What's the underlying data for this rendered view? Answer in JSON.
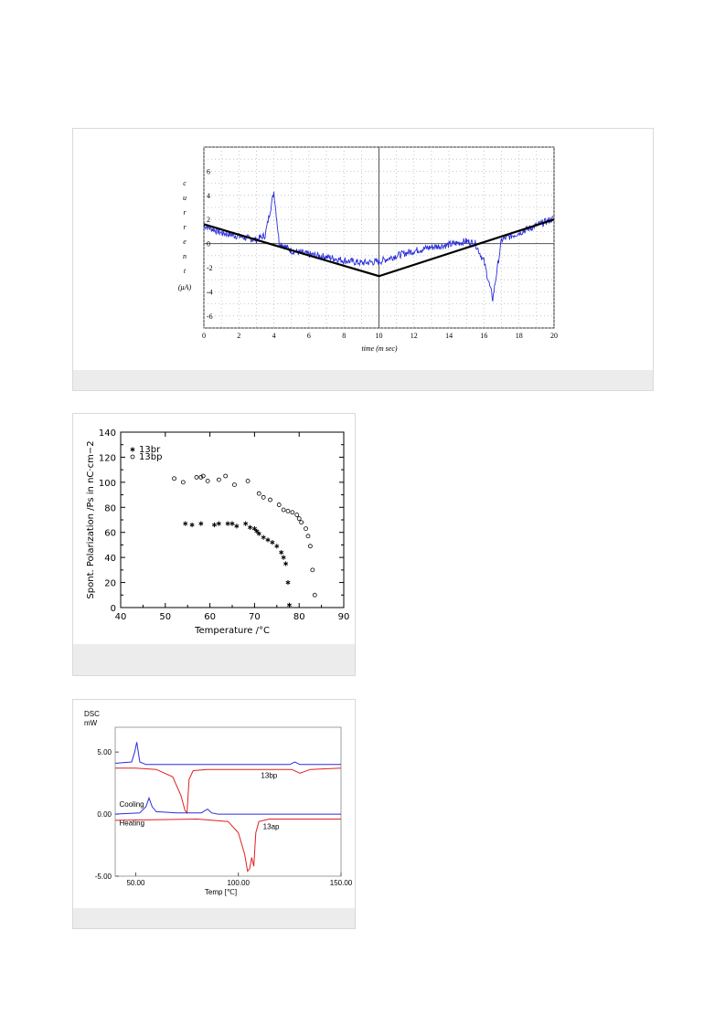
{
  "chart_data": [
    {
      "type": "line",
      "xlabel": "time (m sec)",
      "ylabel": "current (μA)",
      "ylabel_letters": [
        "c",
        "u",
        "r",
        "r",
        "e",
        "n",
        "t",
        "(μA)"
      ],
      "xlim": [
        0,
        20
      ],
      "ylim": [
        -7,
        8
      ],
      "xticks": [
        "0",
        "2",
        "4",
        "6",
        "8",
        "10",
        "12",
        "14",
        "16",
        "18",
        "20"
      ],
      "yticks": [
        {
          "v": 6,
          "label": "6"
        },
        {
          "v": 4,
          "label": "4"
        },
        {
          "v": 2,
          "label": "2"
        },
        {
          "v": 0,
          "label": "0"
        },
        {
          "v": -2,
          "label": "-2"
        },
        {
          "v": -4,
          "label": "-4"
        },
        {
          "v": -6,
          "label": "-6"
        }
      ],
      "grid": true,
      "series": [
        {
          "name": "",
          "style": "triangle",
          "color": "#000000",
          "x": [
            0,
            10,
            20
          ],
          "y": [
            1.6,
            -2.7,
            2.0
          ]
        },
        {
          "name": "",
          "style": "noisy",
          "color": "#2b2fd9",
          "x": [
            0,
            1,
            2,
            3,
            3.5,
            4.0,
            4.3,
            5,
            6,
            7,
            8,
            9,
            10,
            11,
            12,
            13,
            14,
            15,
            15.5,
            16.0,
            16.5,
            17,
            18,
            19,
            20
          ],
          "y": [
            1.5,
            0.9,
            0.6,
            0.3,
            0.7,
            4.3,
            0.1,
            -0.6,
            -0.9,
            -1.1,
            -1.4,
            -1.6,
            -1.5,
            -1.0,
            -0.6,
            -0.3,
            -0.1,
            0.2,
            0.0,
            -1.5,
            -4.6,
            0.3,
            0.9,
            1.5,
            2.1
          ]
        }
      ]
    },
    {
      "type": "scatter",
      "xlabel": "Temperature /°C",
      "ylabel": "Spont. Polarization /Ps in nC·cm−2",
      "xlim": [
        40,
        90
      ],
      "ylim": [
        0,
        140
      ],
      "xticks": [
        "40",
        "50",
        "60",
        "70",
        "80",
        "90"
      ],
      "yticks": [
        "0",
        "20",
        "40",
        "60",
        "80",
        "100",
        "120",
        "140"
      ],
      "legend_position": "top-left",
      "series": [
        {
          "name": "13br",
          "marker": "star",
          "x": [
            54.5,
            56,
            58,
            61,
            62,
            64,
            65,
            66,
            68,
            69,
            70,
            70.5,
            71,
            72,
            73,
            74,
            75,
            76,
            76.5,
            77,
            77.5
          ],
          "y": [
            67,
            66,
            67,
            66,
            67,
            67,
            67,
            65,
            67,
            64,
            63,
            61,
            59,
            56,
            54,
            52,
            49,
            44,
            40,
            35,
            20
          ]
        },
        {
          "name": "13bp",
          "marker": "circle",
          "x": [
            52,
            54,
            57,
            58,
            58.5,
            59.5,
            62,
            63.5,
            65.5,
            68.5,
            71,
            72,
            73.5,
            75.5,
            76.5,
            77.5,
            78.5,
            79.5,
            80,
            80.5,
            81.5,
            82,
            82.5,
            83
          ],
          "y": [
            103,
            100,
            104,
            104,
            105,
            101,
            102,
            105,
            98,
            101,
            91,
            88,
            86,
            82,
            78,
            77,
            76,
            74,
            71,
            68,
            63,
            57,
            49,
            30
          ]
        }
      ],
      "extra_points": {
        "x": [
          77.8,
          83.5
        ],
        "y": [
          2,
          10
        ]
      }
    },
    {
      "type": "line",
      "ylabel_top": "DSC",
      "ylabel_unit": "mW",
      "xlabel": "Temp [℃]",
      "xlim": [
        40,
        150
      ],
      "ylim": [
        -5,
        7
      ],
      "xticks": [
        {
          "v": 50,
          "label": "50.00"
        },
        {
          "v": 100,
          "label": "100.00"
        },
        {
          "v": 150,
          "label": "150.00"
        }
      ],
      "yticks": [
        {
          "v": 5,
          "label": "5.00"
        },
        {
          "v": 0,
          "label": "0.00"
        },
        {
          "v": -5,
          "label": "-5.00"
        }
      ],
      "annotations": [
        {
          "text": "13bp",
          "x": 111,
          "y": 2.9,
          "color": "#000000"
        },
        {
          "text": "Cooling",
          "x": 42,
          "y": 0.6,
          "color": "#2b2fd9"
        },
        {
          "text": "Heating",
          "x": 42,
          "y": -0.9,
          "color": "#e02020"
        },
        {
          "text": "13ap",
          "x": 112,
          "y": -1.2,
          "color": "#000000"
        }
      ],
      "series": [
        {
          "name": "13bp cooling",
          "color": "#2b2fd9",
          "x": [
            40,
            48,
            49.5,
            50.5,
            52,
            55,
            70,
            100,
            125,
            127.5,
            130,
            135,
            150
          ],
          "y": [
            4.1,
            4.2,
            5.0,
            5.8,
            4.2,
            4.0,
            4.0,
            4.0,
            4.0,
            4.2,
            4.0,
            4.0,
            4.0
          ]
        },
        {
          "name": "13bp heating",
          "color": "#e02020",
          "x": [
            40,
            50,
            60,
            68,
            72,
            74,
            75,
            76,
            78,
            85,
            100,
            126,
            130,
            135,
            150
          ],
          "y": [
            3.7,
            3.7,
            3.6,
            3.0,
            1.5,
            0.3,
            0.1,
            2.8,
            3.5,
            3.6,
            3.6,
            3.6,
            3.3,
            3.6,
            3.7
          ]
        },
        {
          "name": "13ap cooling",
          "color": "#2b2fd9",
          "x": [
            40,
            52,
            55,
            56.5,
            58,
            60,
            70,
            82,
            85,
            87,
            90,
            150
          ],
          "y": [
            0.0,
            0.1,
            0.6,
            1.3,
            0.6,
            0.2,
            0.1,
            0.1,
            0.4,
            0.1,
            0.0,
            0.0
          ]
        },
        {
          "name": "13ap heating",
          "color": "#e02020",
          "x": [
            40,
            80,
            95,
            100,
            103,
            104.5,
            105.5,
            106.5,
            107.5,
            108.5,
            110,
            115,
            150
          ],
          "y": [
            -0.5,
            -0.4,
            -0.6,
            -1.5,
            -3.2,
            -4.6,
            -4.4,
            -3.5,
            -4.2,
            -1.5,
            -0.6,
            -0.4,
            -0.4
          ]
        }
      ]
    }
  ]
}
